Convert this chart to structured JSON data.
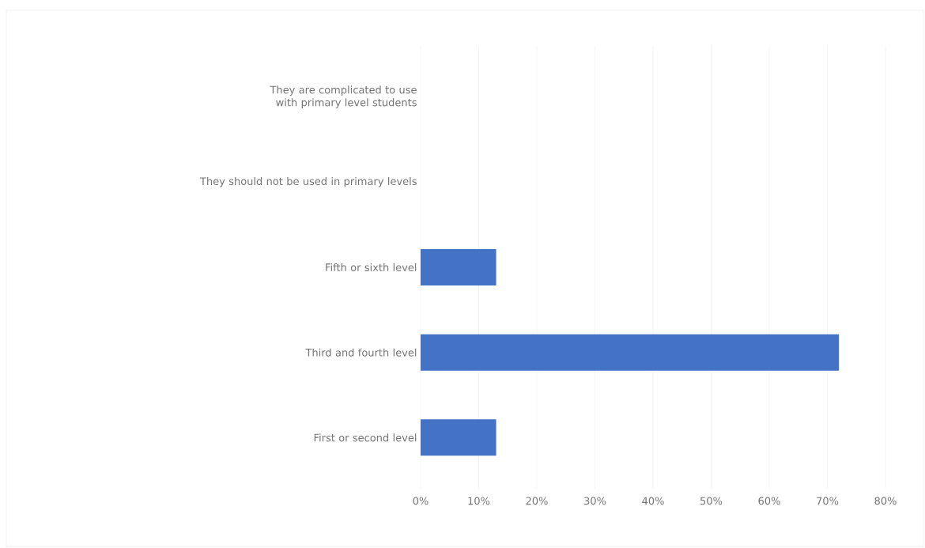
{
  "chart_data": {
    "type": "bar",
    "orientation": "horizontal",
    "categories": [
      "They are complicated to use with primary level students",
      "They should not be used in primary levels",
      "Fifth or sixth level",
      "Third and fourth level",
      "First or second level"
    ],
    "values": [
      0,
      0,
      13,
      72,
      13
    ],
    "color": "#4472c4",
    "xlim": [
      0,
      80
    ],
    "xticks": [
      {
        "value": 0,
        "label": "0%"
      },
      {
        "value": 10,
        "label": "10%"
      },
      {
        "value": 20,
        "label": "20%"
      },
      {
        "value": 30,
        "label": "30%"
      },
      {
        "value": 40,
        "label": "40%"
      },
      {
        "value": 50,
        "label": "50%"
      },
      {
        "value": 60,
        "label": "60%"
      },
      {
        "value": 70,
        "label": "70%"
      },
      {
        "value": 80,
        "label": "80%"
      }
    ],
    "grid": "x"
  }
}
